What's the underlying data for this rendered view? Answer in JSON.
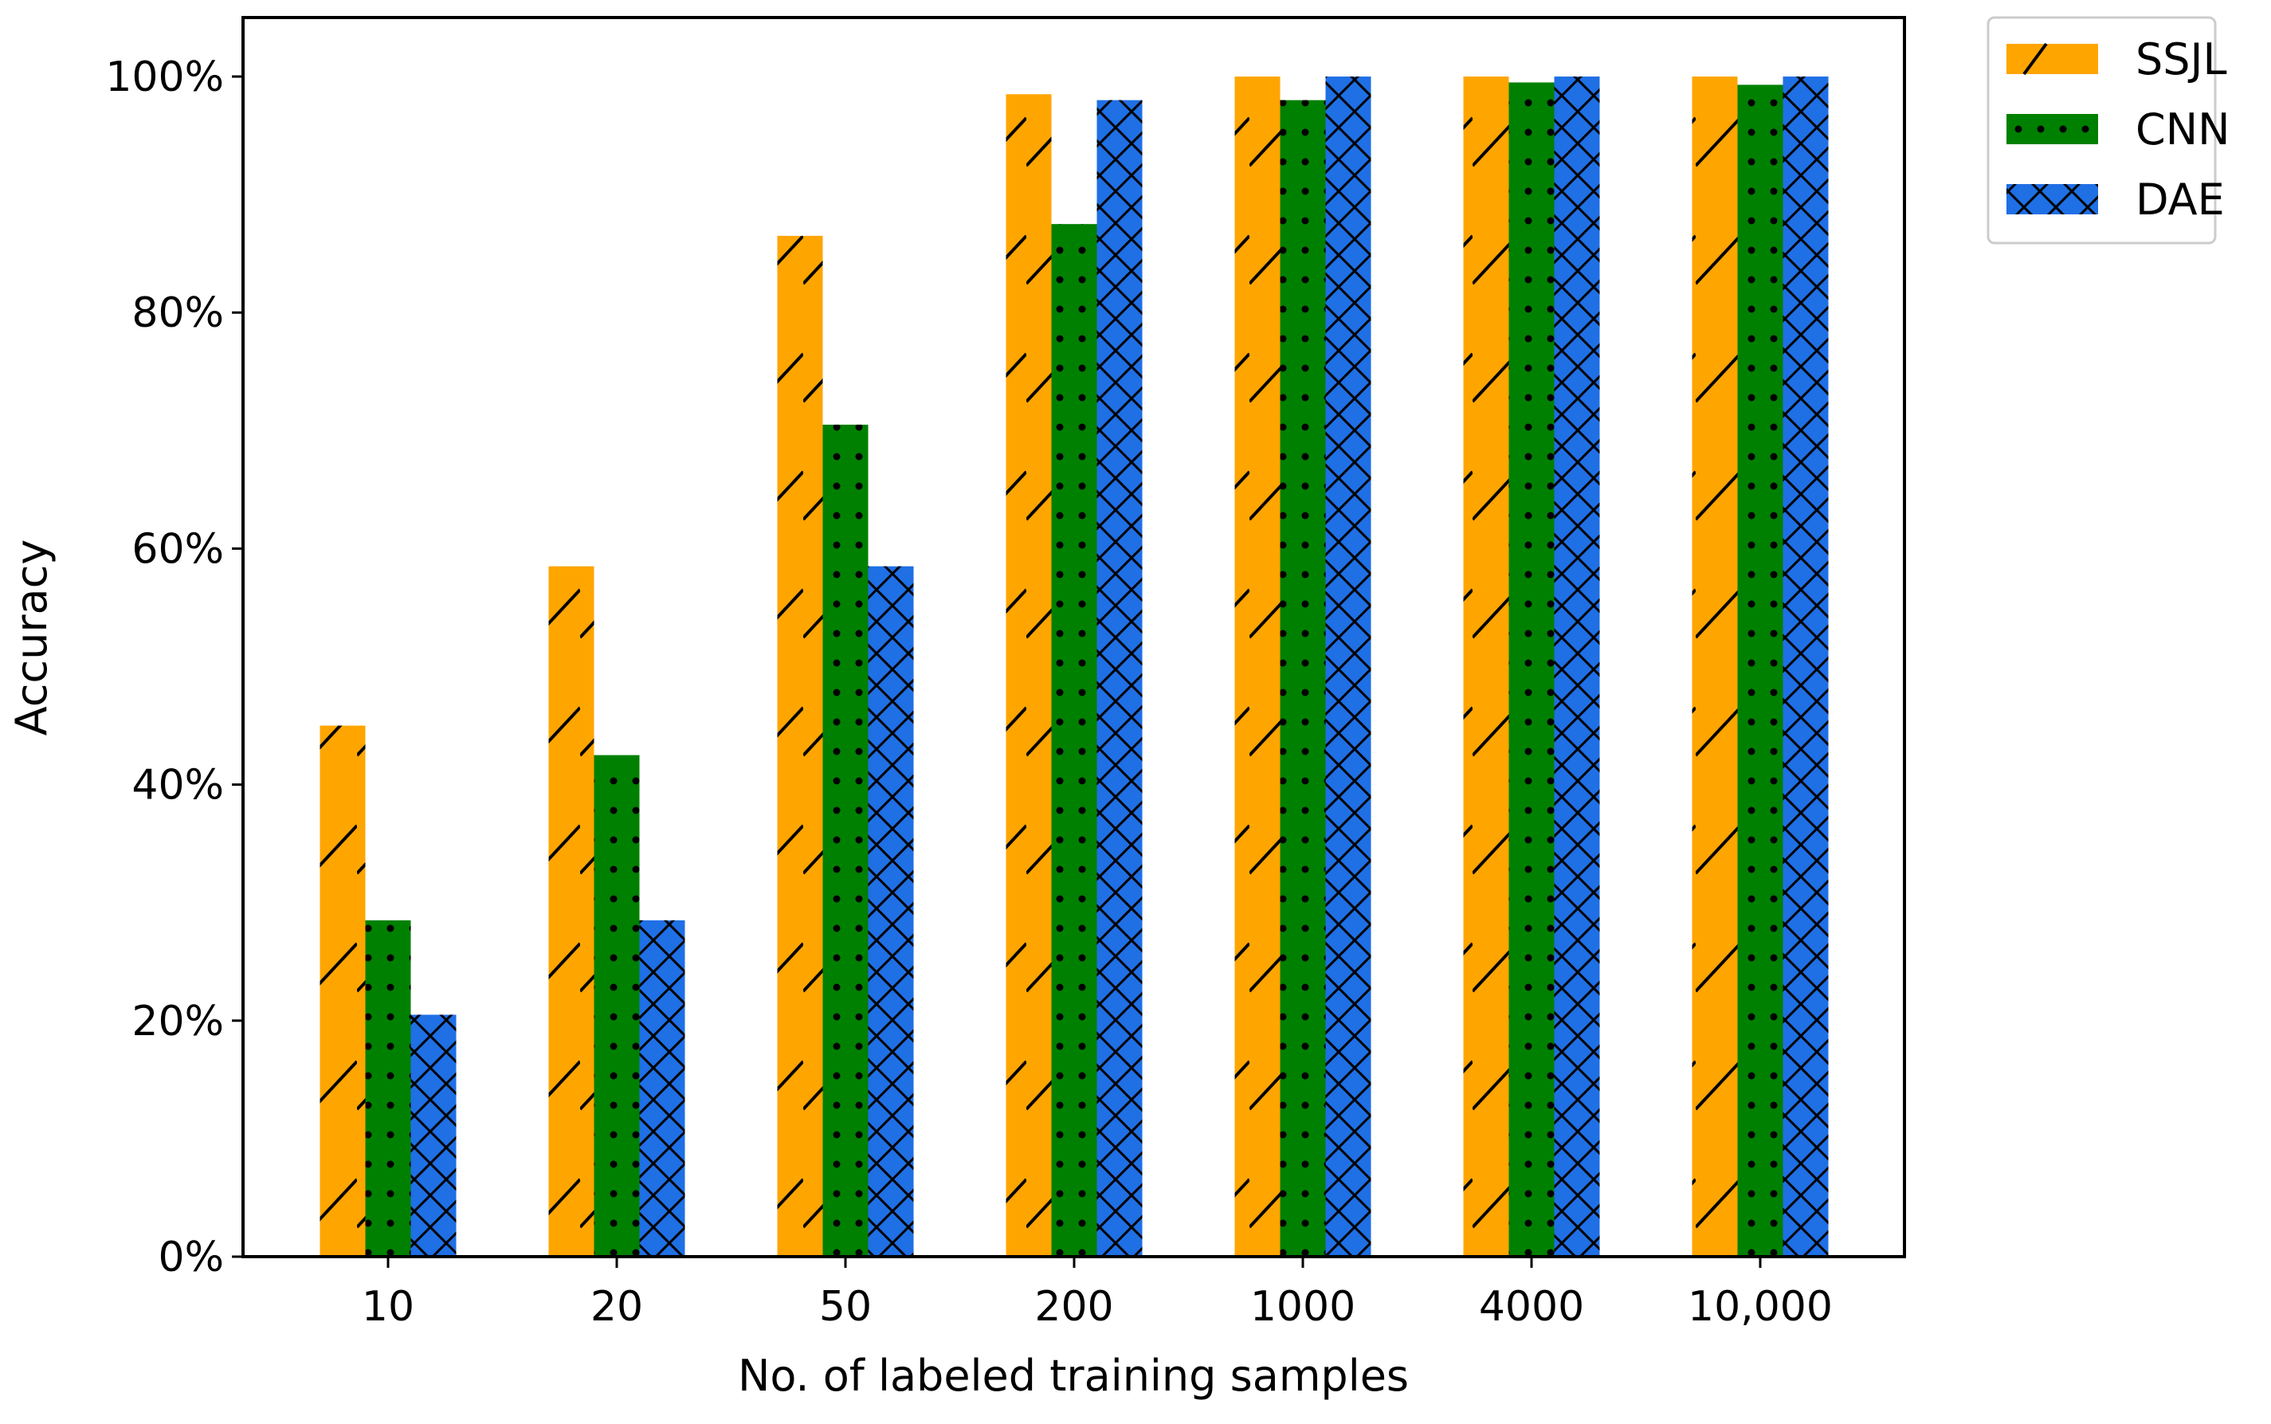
{
  "chart_data": {
    "type": "bar",
    "title": "",
    "xlabel": "No. of labeled training samples",
    "ylabel": "Accuracy",
    "ylim": [
      0,
      105
    ],
    "y_ticks": [
      {
        "value": 0,
        "label": "0%"
      },
      {
        "value": 20,
        "label": "20%"
      },
      {
        "value": 40,
        "label": "40%"
      },
      {
        "value": 60,
        "label": "60%"
      },
      {
        "value": 80,
        "label": "80%"
      },
      {
        "value": 100,
        "label": "100%"
      }
    ],
    "categories": [
      "10",
      "20",
      "50",
      "200",
      "1000",
      "4000",
      "10,000"
    ],
    "series": [
      {
        "name": "SSJL",
        "color": "#FFA500",
        "hatch": "diagonal",
        "values": [
          45,
          58.5,
          86.5,
          98.5,
          100,
          100,
          100
        ]
      },
      {
        "name": "CNN",
        "color": "#008000",
        "hatch": "dots",
        "values": [
          28.5,
          42.5,
          70.5,
          87.5,
          98,
          99.5,
          99.3
        ]
      },
      {
        "name": "DAE",
        "color": "#1F6FE5",
        "hatch": "crosshatch",
        "values": [
          20.5,
          28.5,
          58.5,
          98,
          100,
          100,
          100
        ]
      }
    ],
    "legend_position": "outside-top-right",
    "grid": false
  }
}
